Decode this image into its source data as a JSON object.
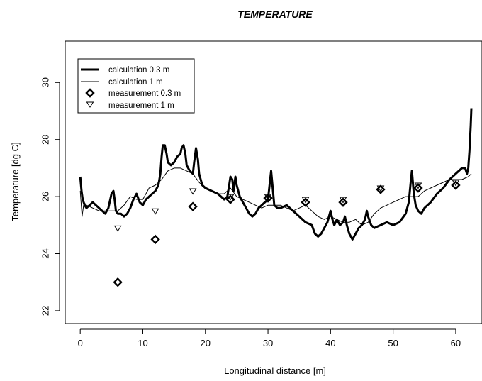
{
  "chart_data": {
    "type": "line",
    "title": "TEMPERATURE",
    "xlabel": "Longitudinal distance [m]",
    "ylabel": "Temperature [dg C]",
    "xlim": [
      -2.4,
      64.2
    ],
    "ylim": [
      21.55,
      31.45
    ],
    "x_ticks": [
      0,
      10,
      20,
      30,
      40,
      50,
      60
    ],
    "y_ticks": [
      22,
      24,
      26,
      28,
      30
    ],
    "grid": false,
    "legend_position": "top-left",
    "legend": [
      {
        "label": "calculation 0.3 m",
        "style": "thick-line"
      },
      {
        "label": "calculation 1 m",
        "style": "thin-line"
      },
      {
        "label": "measurement 0.3 m",
        "style": "diamond"
      },
      {
        "label": "measurement 1 m",
        "style": "triangle-down"
      }
    ],
    "series": [
      {
        "name": "calculation 0.3 m",
        "kind": "line",
        "color": "#000000",
        "width": 3,
        "x": [
          0,
          0.2,
          0.4,
          0.7,
          1,
          1.5,
          2,
          2.5,
          3,
          3.5,
          4,
          4.5,
          5,
          5.3,
          5.5,
          5.7,
          6,
          6.5,
          7,
          7.5,
          8,
          8.5,
          9,
          9.5,
          10,
          10.5,
          11,
          11.5,
          12,
          12.5,
          12.8,
          13,
          13.2,
          13.5,
          13.8,
          14,
          14.5,
          15,
          15.5,
          16,
          16.2,
          16.5,
          16.8,
          17,
          17.5,
          18,
          18.2,
          18.5,
          18.8,
          19,
          19.5,
          20,
          21,
          22,
          23,
          23.5,
          23.8,
          24,
          24.3,
          24.5,
          24.8,
          25,
          25.5,
          26,
          26.5,
          27,
          27.5,
          28,
          28.5,
          29,
          29.5,
          30,
          30.3,
          30.5,
          30.8,
          31,
          31.5,
          32,
          33,
          34,
          35,
          36,
          37,
          37.5,
          38,
          38.5,
          39,
          39.5,
          40,
          40.3,
          40.6,
          41,
          41.5,
          42,
          42.3,
          42.6,
          43,
          43.5,
          44,
          44.5,
          45,
          45.5,
          45.8,
          46,
          46.5,
          47,
          48,
          49,
          50,
          51,
          52,
          52.5,
          52.8,
          53,
          53.3,
          53.6,
          54,
          54.5,
          55,
          56,
          57,
          58,
          59,
          60,
          61,
          61.5,
          61.8,
          62,
          62.2,
          62.4,
          62.5
        ],
        "y": [
          26.7,
          26.2,
          25.9,
          25.7,
          25.6,
          25.7,
          25.8,
          25.7,
          25.6,
          25.5,
          25.4,
          25.6,
          26.1,
          26.2,
          25.9,
          25.5,
          25.4,
          25.4,
          25.3,
          25.4,
          25.6,
          25.9,
          26.1,
          25.8,
          25.7,
          25.9,
          26.0,
          26.1,
          26.2,
          26.4,
          26.8,
          27.4,
          27.8,
          27.8,
          27.5,
          27.2,
          27.1,
          27.2,
          27.4,
          27.5,
          27.7,
          27.8,
          27.5,
          27.1,
          26.9,
          26.8,
          27.2,
          27.7,
          27.3,
          26.8,
          26.4,
          26.3,
          26.2,
          26.1,
          25.9,
          26.0,
          26.4,
          26.7,
          26.6,
          26.2,
          26.7,
          26.4,
          26.0,
          25.8,
          25.6,
          25.4,
          25.3,
          25.4,
          25.6,
          25.7,
          25.8,
          25.9,
          26.5,
          26.9,
          26.2,
          25.7,
          25.6,
          25.6,
          25.7,
          25.5,
          25.3,
          25.1,
          25.0,
          24.7,
          24.6,
          24.7,
          24.9,
          25.1,
          25.5,
          25.2,
          25.0,
          25.2,
          25.0,
          25.1,
          25.3,
          25.0,
          24.7,
          24.5,
          24.7,
          24.9,
          25.0,
          25.2,
          25.5,
          25.3,
          25.0,
          24.9,
          25.0,
          25.1,
          25.0,
          25.1,
          25.4,
          25.8,
          26.5,
          26.9,
          26.1,
          25.7,
          25.5,
          25.4,
          25.6,
          25.8,
          26.1,
          26.3,
          26.6,
          26.8,
          27.0,
          27.0,
          26.8,
          27.0,
          27.6,
          28.5,
          29.1
        ]
      },
      {
        "name": "calculation 1 m",
        "kind": "line",
        "color": "#000000",
        "width": 1,
        "x": [
          0,
          0.3,
          0.6,
          1,
          2,
          3,
          4,
          5,
          6,
          7,
          8,
          9,
          10,
          11,
          12,
          13,
          14,
          15,
          16,
          17,
          18,
          19,
          20,
          21,
          22,
          23,
          24,
          25,
          26,
          27,
          28,
          29,
          30,
          31,
          32,
          33,
          34,
          35,
          36,
          37,
          38,
          39,
          40,
          41,
          42,
          43,
          44,
          45,
          46,
          47,
          48,
          49,
          50,
          51,
          52,
          53,
          54,
          55,
          56,
          57,
          58,
          59,
          60,
          61,
          62,
          62.5
        ],
        "y": [
          26.2,
          25.3,
          25.8,
          25.7,
          25.6,
          25.5,
          25.5,
          25.5,
          25.5,
          25.7,
          26.0,
          25.9,
          25.9,
          26.3,
          26.4,
          26.6,
          26.9,
          27.0,
          27.0,
          26.9,
          26.8,
          26.5,
          26.3,
          26.2,
          26.1,
          26.1,
          26.3,
          26.0,
          25.9,
          25.8,
          25.7,
          25.6,
          25.7,
          25.7,
          25.7,
          25.6,
          25.5,
          25.6,
          25.7,
          25.5,
          25.3,
          25.2,
          25.3,
          25.2,
          25.1,
          25.1,
          25.2,
          25.0,
          25.1,
          25.4,
          25.6,
          25.7,
          25.8,
          25.9,
          26.0,
          26.0,
          26.0,
          26.2,
          26.3,
          26.4,
          26.5,
          26.6,
          26.6,
          26.6,
          26.7,
          26.8
        ]
      },
      {
        "name": "measurement 0.3 m",
        "kind": "points",
        "marker": "diamond",
        "x": [
          6,
          12,
          18,
          24,
          30,
          36,
          42,
          48,
          54,
          60
        ],
        "y": [
          23.0,
          24.5,
          25.65,
          25.9,
          25.95,
          25.8,
          25.8,
          26.25,
          26.3,
          26.4
        ]
      },
      {
        "name": "measurement 1 m",
        "kind": "points",
        "marker": "triangle-down",
        "x": [
          6,
          12,
          18,
          24,
          30,
          36,
          42,
          48,
          54,
          60
        ],
        "y": [
          24.9,
          25.5,
          26.2,
          26.0,
          26.0,
          25.9,
          25.9,
          26.3,
          26.4,
          26.5
        ]
      }
    ]
  }
}
